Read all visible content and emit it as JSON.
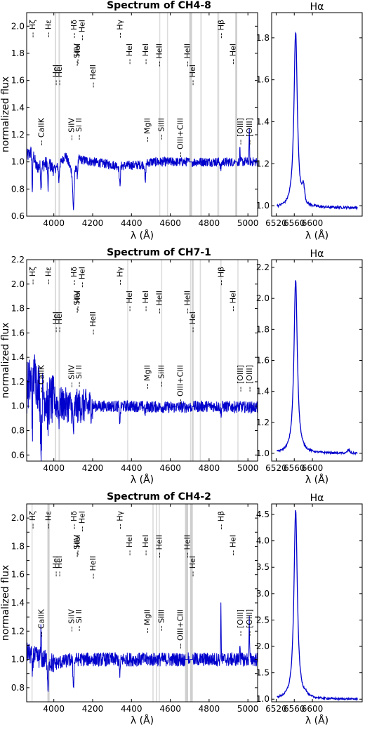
{
  "figure": {
    "xlabel_main": "λ (Å)",
    "xlabel_halpha": "λ (Å)",
    "ylabel": "normalized flux"
  },
  "chart_data": [
    {
      "type": "line",
      "title": "Spectrum of CH4-8",
      "xlabel": "λ (Å)",
      "ylabel": "normalized flux",
      "xlim": [
        3860,
        5050
      ],
      "ylim": [
        0.6,
        2.1
      ],
      "xticks": [
        4000,
        4200,
        4400,
        4600,
        4800,
        5000
      ],
      "yticks": [
        0.6,
        0.8,
        1.0,
        1.2,
        1.4,
        1.6,
        1.8,
        2.0
      ],
      "color": "#0000cc",
      "anchors": [
        [
          3860,
          1.04
        ],
        [
          3890,
          1.08
        ],
        [
          3910,
          0.96
        ],
        [
          3950,
          0.98
        ],
        [
          3970,
          1.0
        ],
        [
          4000,
          0.94
        ],
        [
          4030,
          0.98
        ],
        [
          4060,
          1.05
        ],
        [
          4100,
          0.9
        ],
        [
          4130,
          1.02
        ],
        [
          4200,
          1.0
        ],
        [
          4340,
          0.97
        ],
        [
          4460,
          0.98
        ],
        [
          4500,
          1.0
        ],
        [
          4800,
          1.0
        ],
        [
          4960,
          1.0
        ],
        [
          5007,
          1.0
        ],
        [
          5050,
          1.0
        ]
      ],
      "features": [
        {
          "x": 3889,
          "depth": -0.28,
          "w": 3
        },
        {
          "x": 3934,
          "depth": -0.15,
          "w": 3
        },
        {
          "x": 3970,
          "depth": -0.2,
          "w": 3
        },
        {
          "x": 4026,
          "depth": -0.12,
          "w": 3
        },
        {
          "x": 4101,
          "depth": -0.25,
          "w": 5
        },
        {
          "x": 4121,
          "depth": -0.08,
          "w": 3
        },
        {
          "x": 4340,
          "depth": -0.14,
          "w": 4
        },
        {
          "x": 4471,
          "depth": -0.15,
          "w": 3
        },
        {
          "x": 4861,
          "depth": -0.05,
          "w": 4
        },
        {
          "x": 4959,
          "depth": 0.1,
          "w": 2
        },
        {
          "x": 5007,
          "depth": 0.22,
          "w": 2
        }
      ],
      "noise_amp": 0.035,
      "gray_bands": [
        [
          4005,
          4012,
          "light"
        ],
        [
          4024,
          4032,
          "light"
        ],
        [
          4543,
          4547,
          "light"
        ],
        [
          4583,
          4587,
          "light"
        ],
        [
          4698,
          4712,
          "dark"
        ],
        [
          4755,
          4762,
          "light"
        ],
        [
          4842,
          4852,
          "light"
        ],
        [
          4935,
          4945,
          "dark"
        ]
      ],
      "annotations": [
        {
          "label": "-- Hζ",
          "x": 3889,
          "row": 1
        },
        {
          "label": "-- Hε",
          "x": 3970,
          "row": 1
        },
        {
          "label": "-- HeI",
          "x": 4009,
          "row": 3
        },
        {
          "label": "-- HeI",
          "x": 4026,
          "row": 3
        },
        {
          "label": "-- CaIIK",
          "x": 3934,
          "row": 4
        },
        {
          "label": "-- SiIV",
          "x": 4089,
          "row": 4
        },
        {
          "label": "-- Si II",
          "x": 4128,
          "row": 4
        },
        {
          "label": "-- SiIV",
          "x": 4116,
          "row": 2
        },
        {
          "label": "-- HeI",
          "x": 4121,
          "row": 2
        },
        {
          "label": "-- Hδ",
          "x": 4102,
          "row": 1
        },
        {
          "label": "-- HeI",
          "x": 4144,
          "row": 1
        },
        {
          "label": "-- HeII",
          "x": 4200,
          "row": 3
        },
        {
          "label": "-- Hγ",
          "x": 4340,
          "row": 1
        },
        {
          "label": "-- HeI",
          "x": 4388,
          "row": 2
        },
        {
          "label": "-- HeI",
          "x": 4471,
          "row": 2
        },
        {
          "label": "-- MgII",
          "x": 4481,
          "row": 4
        },
        {
          "label": "-- SiIII",
          "x": 4553,
          "row": 4
        },
        {
          "label": "-- HeII",
          "x": 4542,
          "row": 2
        },
        {
          "label": "-- OIII+CIII",
          "x": 4650,
          "row": 4
        },
        {
          "label": "-- HeII",
          "x": 4686,
          "row": 2
        },
        {
          "label": "-- HeI",
          "x": 4713,
          "row": 3
        },
        {
          "label": "-- Hβ",
          "x": 4861,
          "row": 1
        },
        {
          "label": "-- HeI",
          "x": 4922,
          "row": 2
        },
        {
          "label": "-- [OIII]",
          "x": 4959,
          "row": 4
        },
        {
          "label": "-- [OIII]",
          "x": 5007,
          "row": 4
        }
      ]
    },
    {
      "type": "line",
      "title": "Hα",
      "xlabel": "λ (Å)",
      "xlim": [
        6510,
        6710
      ],
      "ylim": [
        0.95,
        1.92
      ],
      "xticks": [
        6520,
        6560,
        6600
      ],
      "yticks": [
        1.0,
        1.2,
        1.4,
        1.6,
        1.8
      ],
      "color": "#0000cc",
      "peak_x": 6563,
      "peak": 1.83,
      "continuum": 0.99,
      "secondary": {
        "x": 6580,
        "height": 0.07
      }
    },
    {
      "type": "line",
      "title": "Spectrum of CH7-1",
      "xlabel": "λ (Å)",
      "ylabel": "normalized flux",
      "xlim": [
        3860,
        5050
      ],
      "ylim": [
        0.55,
        2.2
      ],
      "xticks": [
        4000,
        4200,
        4400,
        4600,
        4800,
        5000
      ],
      "yticks": [
        0.6,
        0.8,
        1.0,
        1.2,
        1.4,
        1.6,
        1.8,
        2.0,
        2.2
      ],
      "color": "#0000cc",
      "anchors": [
        [
          3860,
          1.15
        ],
        [
          3900,
          1.25
        ],
        [
          3940,
          1.1
        ],
        [
          3980,
          1.05
        ],
        [
          4020,
          1.02
        ],
        [
          4100,
          1.0
        ],
        [
          4200,
          1.0
        ],
        [
          4400,
          1.0
        ],
        [
          4600,
          0.99
        ],
        [
          4800,
          1.0
        ],
        [
          5050,
          0.99
        ]
      ],
      "features": [
        {
          "x": 3889,
          "depth": -0.35,
          "w": 3
        },
        {
          "x": 3934,
          "depth": -0.45,
          "w": 4
        },
        {
          "x": 3970,
          "depth": -0.2,
          "w": 3
        },
        {
          "x": 4026,
          "depth": -0.1,
          "w": 3
        },
        {
          "x": 4101,
          "depth": -0.2,
          "w": 5
        },
        {
          "x": 4340,
          "depth": -0.12,
          "w": 4
        },
        {
          "x": 4471,
          "depth": -0.06,
          "w": 3
        },
        {
          "x": 4861,
          "depth": -0.05,
          "w": 4
        }
      ],
      "noise_amp": 0.08,
      "noise_decay": 4200,
      "gray_bands": [
        [
          4005,
          4012,
          "light"
        ],
        [
          4024,
          4032,
          "light"
        ],
        [
          4378,
          4382,
          "light"
        ],
        [
          4553,
          4557,
          "light"
        ],
        [
          4702,
          4708,
          "light"
        ],
        [
          4712,
          4720,
          "dark"
        ],
        [
          4752,
          4758,
          "light"
        ],
        [
          4858,
          4864,
          "light"
        ],
        [
          4946,
          4950,
          "light"
        ]
      ],
      "annotations": [
        {
          "label": "-- Hζ",
          "x": 3889,
          "row": 1
        },
        {
          "label": "-- Hε",
          "x": 3970,
          "row": 1
        },
        {
          "label": "-- HeI",
          "x": 4009,
          "row": 3
        },
        {
          "label": "-- HeI",
          "x": 4026,
          "row": 3
        },
        {
          "label": "-- CaIIK",
          "x": 3934,
          "row": 4
        },
        {
          "label": "-- SiIV",
          "x": 4089,
          "row": 4
        },
        {
          "label": "-- Si II",
          "x": 4128,
          "row": 4
        },
        {
          "label": "-- SiIV",
          "x": 4116,
          "row": 2
        },
        {
          "label": "-- HeI",
          "x": 4121,
          "row": 2
        },
        {
          "label": "-- Hδ",
          "x": 4102,
          "row": 1
        },
        {
          "label": "-- HeI",
          "x": 4144,
          "row": 1
        },
        {
          "label": "-- HeII",
          "x": 4200,
          "row": 3
        },
        {
          "label": "-- Hγ",
          "x": 4340,
          "row": 1
        },
        {
          "label": "-- HeI",
          "x": 4388,
          "row": 2
        },
        {
          "label": "-- HeI",
          "x": 4471,
          "row": 2
        },
        {
          "label": "-- MgII",
          "x": 4481,
          "row": 4
        },
        {
          "label": "-- SiIII",
          "x": 4553,
          "row": 4
        },
        {
          "label": "-- HeII",
          "x": 4542,
          "row": 2
        },
        {
          "label": "-- OIII+CIII",
          "x": 4650,
          "row": 4
        },
        {
          "label": "-- HeII",
          "x": 4686,
          "row": 2
        },
        {
          "label": "-- HeI",
          "x": 4713,
          "row": 3
        },
        {
          "label": "-- Hβ",
          "x": 4861,
          "row": 1
        },
        {
          "label": "-- HeI",
          "x": 4922,
          "row": 2
        },
        {
          "label": "-- [OIII]",
          "x": 4959,
          "row": 4
        },
        {
          "label": "-- [OIII]",
          "x": 5007,
          "row": 4
        }
      ]
    },
    {
      "type": "line",
      "title": "Hα",
      "xlabel": "λ (Å)",
      "xlim": [
        6510,
        6710
      ],
      "ylim": [
        0.95,
        2.25
      ],
      "xticks": [
        6520,
        6560,
        6600
      ],
      "yticks": [
        1.0,
        1.2,
        1.4,
        1.6,
        1.8,
        2.0,
        2.2
      ],
      "color": "#0000cc",
      "peak_x": 6563,
      "peak": 2.12,
      "continuum": 1.0,
      "secondary": {
        "x": 6680,
        "height": 0.02
      }
    },
    {
      "type": "line",
      "title": "Spectrum of CH4-2",
      "xlabel": "λ (Å)",
      "ylabel": "normalized flux",
      "xlim": [
        3860,
        5050
      ],
      "ylim": [
        0.7,
        2.1
      ],
      "xticks": [
        4000,
        4200,
        4400,
        4600,
        4800,
        5000
      ],
      "yticks": [
        0.8,
        0.9,
        1.0,
        1.1,
        1.2,
        1.3,
        1.4,
        1.5,
        1.6,
        1.7,
        1.8,
        1.9,
        2.0
      ],
      "ytick_labels_shown": [
        0.8,
        1.0,
        1.2,
        1.4,
        1.6,
        1.8,
        2.0
      ],
      "color": "#0000cc",
      "anchors": [
        [
          3860,
          1.05
        ],
        [
          3900,
          1.02
        ],
        [
          3950,
          1.0
        ],
        [
          4000,
          0.97
        ],
        [
          4100,
          1.0
        ],
        [
          4400,
          1.0
        ],
        [
          4800,
          1.0
        ],
        [
          5050,
          1.0
        ]
      ],
      "features": [
        {
          "x": 3889,
          "depth": -0.12,
          "w": 3
        },
        {
          "x": 3934,
          "depth": 0.2,
          "w": 2
        },
        {
          "x": 3970,
          "depth": -0.22,
          "w": 3
        },
        {
          "x": 4101,
          "depth": -0.18,
          "w": 4
        },
        {
          "x": 4340,
          "depth": -0.1,
          "w": 4
        },
        {
          "x": 4861,
          "depth": 0.36,
          "w": 2
        },
        {
          "x": 4959,
          "depth": 0.14,
          "w": 2
        },
        {
          "x": 5007,
          "depth": 0.28,
          "w": 2
        }
      ],
      "noise_amp": 0.05,
      "gray_bands": [
        [
          3885,
          3890,
          "light"
        ],
        [
          3967,
          3978,
          "dark"
        ],
        [
          4508,
          4514,
          "light"
        ],
        [
          4526,
          4532,
          "light"
        ],
        [
          4541,
          4546,
          "light"
        ],
        [
          4676,
          4692,
          "dark"
        ],
        [
          4702,
          4716,
          "dark"
        ]
      ],
      "annotations": [
        {
          "label": "-- Hζ",
          "x": 3889,
          "row": 1
        },
        {
          "label": "-- Hε",
          "x": 3970,
          "row": 1
        },
        {
          "label": "-- HeI",
          "x": 4009,
          "row": 3
        },
        {
          "label": "-- HeI",
          "x": 4026,
          "row": 3
        },
        {
          "label": "-- CaIIK",
          "x": 3934,
          "row": 4
        },
        {
          "label": "-- SiIV",
          "x": 4089,
          "row": 4
        },
        {
          "label": "-- Si II",
          "x": 4128,
          "row": 4
        },
        {
          "label": "-- SiIV",
          "x": 4116,
          "row": 2
        },
        {
          "label": "-- HeI",
          "x": 4121,
          "row": 2
        },
        {
          "label": "-- Hδ",
          "x": 4102,
          "row": 1
        },
        {
          "label": "-- HeI",
          "x": 4144,
          "row": 1
        },
        {
          "label": "-- HeII",
          "x": 4200,
          "row": 3
        },
        {
          "label": "-- Hγ",
          "x": 4340,
          "row": 1
        },
        {
          "label": "-- HeI",
          "x": 4388,
          "row": 2
        },
        {
          "label": "-- HeI",
          "x": 4471,
          "row": 2
        },
        {
          "label": "-- MgII",
          "x": 4481,
          "row": 4
        },
        {
          "label": "-- SiIII",
          "x": 4553,
          "row": 4
        },
        {
          "label": "-- HeII",
          "x": 4542,
          "row": 2
        },
        {
          "label": "-- OIII+CIII",
          "x": 4650,
          "row": 4
        },
        {
          "label": "-- HeII",
          "x": 4686,
          "row": 2
        },
        {
          "label": "-- HeI",
          "x": 4713,
          "row": 3
        },
        {
          "label": "-- Hβ",
          "x": 4861,
          "row": 1
        },
        {
          "label": "-- HeI",
          "x": 4922,
          "row": 2
        },
        {
          "label": "-- [OIII]",
          "x": 4959,
          "row": 4
        },
        {
          "label": "-- [OIII]",
          "x": 5007,
          "row": 4
        }
      ]
    },
    {
      "type": "line",
      "title": "Hα",
      "xlabel": "λ (Å)",
      "xlim": [
        6510,
        6710
      ],
      "ylim": [
        0.95,
        4.7
      ],
      "xticks": [
        6520,
        6560,
        6600
      ],
      "yticks": [
        1.0,
        1.5,
        2.0,
        2.5,
        3.0,
        3.5,
        4.0,
        4.5
      ],
      "color": "#0000cc",
      "peak_x": 6563,
      "peak": 4.58,
      "continuum": 1.0,
      "secondary": {
        "x": 6585,
        "height": 0.05
      }
    }
  ]
}
